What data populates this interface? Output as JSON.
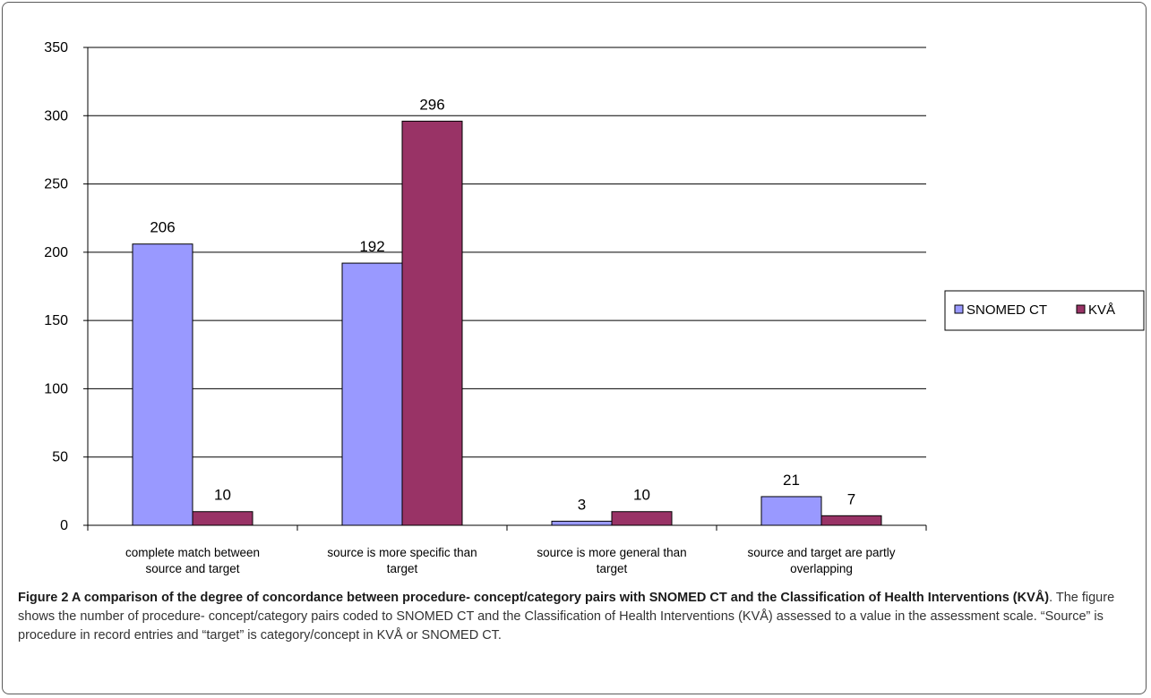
{
  "chart_data": {
    "type": "bar",
    "categories": [
      "complete match between source and target",
      "source is more specific than target",
      "source is more general than target",
      "source and target are partly overlapping"
    ],
    "category_lines": [
      [
        "complete match between",
        "source and target"
      ],
      [
        "source is more specific than",
        "target"
      ],
      [
        "source is more general than",
        "target"
      ],
      [
        "source and target are partly",
        "overlapping"
      ]
    ],
    "series": [
      {
        "name": "SNOMED CT",
        "values": [
          206,
          192,
          3,
          21
        ],
        "color": "#9999ff"
      },
      {
        "name": "KVÅ",
        "values": [
          10,
          296,
          10,
          7
        ],
        "color": "#993366"
      }
    ],
    "ylim": [
      0,
      350
    ],
    "yticks": [
      0,
      50,
      100,
      150,
      200,
      250,
      300,
      350
    ],
    "grid": true,
    "legend": "right",
    "xlabel": "",
    "ylabel": ""
  },
  "caption": {
    "title": "Figure 2 A comparison of the degree of concordance between procedure- concept/category pairs with SNOMED CT and the Classification of Health Interventions (KVÅ)",
    "text": ". The figure shows the number of procedure- concept/category pairs coded to SNOMED CT and the Classification of Health Interventions (KVÅ) assessed to a value in the assessment scale. “Source” is procedure in record entries and “target” is category/concept in KVÅ or SNOMED CT."
  }
}
